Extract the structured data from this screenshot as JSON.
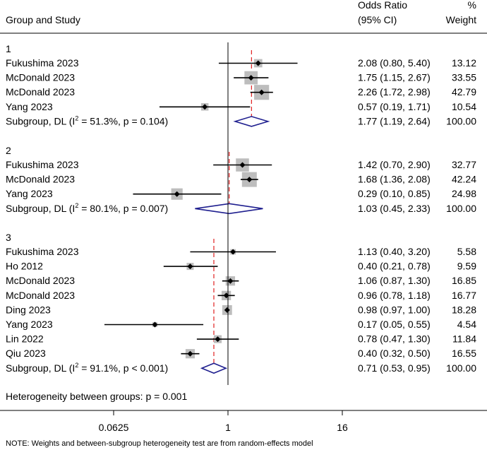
{
  "chart_data": {
    "type": "forest",
    "xscale": "log2",
    "xlim": [
      0.004,
      300
    ],
    "null_value": 1,
    "ticks": [
      {
        "value": 0.0625,
        "label": "0.0625"
      },
      {
        "value": 1,
        "label": "1"
      },
      {
        "value": 16,
        "label": "16"
      }
    ],
    "header": {
      "study": "Group and Study",
      "or_line1": "Odds Ratio",
      "or_line2": "(95% CI)",
      "w_line1": "%",
      "w_line2": "Weight"
    },
    "groups": [
      {
        "name": "1",
        "subgroup_or": 1.77,
        "subgroup_ci": [
          1.19,
          2.64
        ],
        "subgroup_label_pre": "Subgroup, DL (I",
        "subgroup_label_sup": "2",
        "subgroup_label_post": " = 51.3%, p = 0.104)",
        "subgroup_or_text": "1.77 (1.19, 2.64)",
        "subgroup_w_text": "100.00",
        "studies": [
          {
            "study": "Fukushima 2023",
            "or": 2.08,
            "lo": 0.8,
            "hi": 5.4,
            "weight": 13.12,
            "or_text": "2.08 (0.80, 5.40)",
            "w_text": "13.12"
          },
          {
            "study": "McDonald 2023",
            "or": 1.75,
            "lo": 1.15,
            "hi": 2.67,
            "weight": 33.55,
            "or_text": "1.75 (1.15, 2.67)",
            "w_text": "33.55"
          },
          {
            "study": "McDonald 2023",
            "or": 2.26,
            "lo": 1.72,
            "hi": 2.98,
            "weight": 42.79,
            "or_text": "2.26 (1.72, 2.98)",
            "w_text": "42.79"
          },
          {
            "study": "Yang 2023",
            "or": 0.57,
            "lo": 0.19,
            "hi": 1.71,
            "weight": 10.54,
            "or_text": "0.57 (0.19, 1.71)",
            "w_text": "10.54"
          }
        ]
      },
      {
        "name": "2",
        "subgroup_or": 1.03,
        "subgroup_ci": [
          0.45,
          2.33
        ],
        "subgroup_label_pre": "Subgroup, DL (I",
        "subgroup_label_sup": "2",
        "subgroup_label_post": " = 80.1%, p = 0.007)",
        "subgroup_or_text": "1.03 (0.45, 2.33)",
        "subgroup_w_text": "100.00",
        "studies": [
          {
            "study": "Fukushima 2023",
            "or": 1.42,
            "lo": 0.7,
            "hi": 2.9,
            "weight": 32.77,
            "or_text": "1.42 (0.70, 2.90)",
            "w_text": "32.77"
          },
          {
            "study": "McDonald 2023",
            "or": 1.68,
            "lo": 1.36,
            "hi": 2.08,
            "weight": 42.24,
            "or_text": "1.68 (1.36, 2.08)",
            "w_text": "42.24"
          },
          {
            "study": "Yang 2023",
            "or": 0.29,
            "lo": 0.1,
            "hi": 0.85,
            "weight": 24.98,
            "or_text": "0.29 (0.10, 0.85)",
            "w_text": "24.98"
          }
        ]
      },
      {
        "name": "3",
        "subgroup_or": 0.71,
        "subgroup_ci": [
          0.53,
          0.95
        ],
        "subgroup_label_pre": "Subgroup, DL (I",
        "subgroup_label_sup": "2",
        "subgroup_label_post": " = 91.1%, p < 0.001)",
        "subgroup_or_text": "0.71 (0.53, 0.95)",
        "subgroup_w_text": "100.00",
        "studies": [
          {
            "study": "Fukushima 2023",
            "or": 1.13,
            "lo": 0.4,
            "hi": 3.2,
            "weight": 5.58,
            "or_text": "1.13 (0.40, 3.20)",
            "w_text": "5.58"
          },
          {
            "study": "Ho 2012",
            "or": 0.4,
            "lo": 0.21,
            "hi": 0.78,
            "weight": 9.59,
            "or_text": "0.40 (0.21, 0.78)",
            "w_text": "9.59"
          },
          {
            "study": "McDonald 2023",
            "or": 1.06,
            "lo": 0.87,
            "hi": 1.3,
            "weight": 16.85,
            "or_text": "1.06 (0.87, 1.30)",
            "w_text": "16.85"
          },
          {
            "study": "McDonald 2023",
            "or": 0.96,
            "lo": 0.78,
            "hi": 1.18,
            "weight": 16.77,
            "or_text": "0.96 (0.78, 1.18)",
            "w_text": "16.77"
          },
          {
            "study": "Ding 2023",
            "or": 0.98,
            "lo": 0.97,
            "hi": 1.0,
            "weight": 18.28,
            "or_text": "0.98 (0.97, 1.00)",
            "w_text": "18.28"
          },
          {
            "study": "Yang 2023",
            "or": 0.17,
            "lo": 0.05,
            "hi": 0.55,
            "weight": 4.54,
            "or_text": "0.17 (0.05, 0.55)",
            "w_text": "4.54"
          },
          {
            "study": "Lin 2022",
            "or": 0.78,
            "lo": 0.47,
            "hi": 1.3,
            "weight": 11.84,
            "or_text": "0.78 (0.47, 1.30)",
            "w_text": "11.84"
          },
          {
            "study": "Qiu 2023",
            "or": 0.4,
            "lo": 0.32,
            "hi": 0.5,
            "weight": 16.55,
            "or_text": "0.40 (0.32, 0.50)",
            "w_text": "16.55"
          }
        ]
      }
    ],
    "heterogeneity": "Heterogeneity between groups: p = 0.001",
    "note": "NOTE: Weights and between-subgroup heterogeneity test are from random-effects model",
    "colors": {
      "box": "#bdbdbd",
      "point": "#000000",
      "ci": "#000000",
      "diamond": "#1f1f8f",
      "subgroup_line": "#e02020",
      "null_line": "#000000"
    }
  }
}
